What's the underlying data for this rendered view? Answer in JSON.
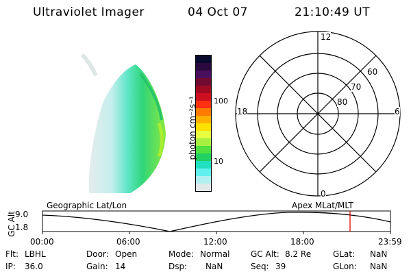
{
  "header": {
    "instrument": "Ultraviolet Imager",
    "date": "04 Oct 07",
    "time": "21:10:49 UT"
  },
  "colorbar": {
    "unit_label": "photon cm⁻²s⁻¹",
    "ticks": [
      "100",
      "10"
    ],
    "colors": [
      "#0a0a2e",
      "#2a0a3e",
      "#4a1060",
      "#700a30",
      "#a00a20",
      "#cc1020",
      "#ff3010",
      "#ff7a00",
      "#ffb000",
      "#ffe000",
      "#e8ff40",
      "#a8f040",
      "#50e040",
      "#20d060",
      "#20e0c0",
      "#60f0f0",
      "#b0f0f0",
      "#e0e8e8"
    ]
  },
  "polar": {
    "mlt_labels": {
      "top": "12",
      "left": "18",
      "right": "6",
      "bottom": "0"
    },
    "lat_labels": [
      "60",
      "70",
      "80"
    ]
  },
  "timeline": {
    "left_label": "Geographic Lat/Lon",
    "right_label": "Apex  MLat/MLT",
    "axis_title": "GC Alt",
    "y_ticks": [
      "9.0",
      "1.8"
    ],
    "x_ticks": [
      "00:00",
      "06:00",
      "12:00",
      "18:00",
      "23:59"
    ],
    "marker_color": "#e00000"
  },
  "status": {
    "filter_label": "Flt:",
    "filter_value": "LBHL",
    "ip_label": "IP:",
    "ip_value": "36.0",
    "door_label": "Door:",
    "door_value": "Open",
    "gain_label": "Gain:",
    "gain_value": "14",
    "mode_label": "Mode:",
    "mode_value": "Normal",
    "dsp_label": "Dsp:",
    "dsp_value": "NaN",
    "gcalt_label": "GC Alt:",
    "gcalt_value": "8.2 Re",
    "seq_label": "Seq:",
    "seq_value": "39",
    "glat_label": "GLat:",
    "glat_value": "NaN",
    "glon_label": "GLon:",
    "glon_value": "NaN"
  }
}
